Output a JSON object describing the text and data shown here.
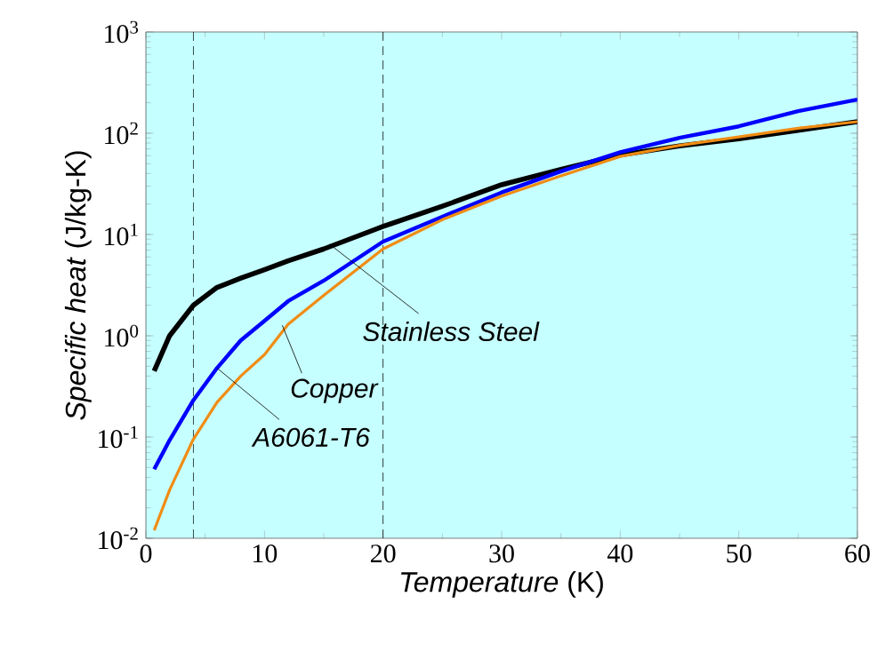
{
  "chart_data": {
    "type": "line",
    "xlabel": "*Temperature* (K)",
    "ylabel": "*Specific heat* (J/kg-K)",
    "log": "y",
    "xlim": [
      0,
      60
    ],
    "xticks": [
      0,
      10,
      20,
      30,
      40,
      50,
      60
    ],
    "ylim": [
      0.01,
      1000
    ],
    "yticks": [
      {
        "value": 0.01,
        "label": "10$^{-2}$"
      },
      {
        "value": 0.1,
        "label": "10$^{-1}$"
      },
      {
        "value": 1,
        "label": "10$^{0}$"
      },
      {
        "value": 10,
        "label": "10$^{1}$"
      },
      {
        "value": 100,
        "label": "10$^{2}$"
      },
      {
        "value": 1000,
        "label": "10$^{3}$"
      }
    ],
    "grid": false,
    "marker": "none",
    "line_style": "solid",
    "x": [
      0.7,
      2,
      4,
      6,
      8,
      10,
      12,
      15,
      20,
      25,
      30,
      35,
      40,
      45,
      50,
      55,
      60
    ],
    "series": [
      {
        "color": "#000000",
        "values": [
          0.45,
          1.0,
          2.0,
          3.0,
          3.7,
          4.5,
          5.5,
          7.2,
          12,
          19,
          31,
          44,
          61,
          75,
          88,
          107,
          130
        ]
      },
      {
        "color": "#0000ff",
        "values": [
          0.048,
          0.093,
          0.23,
          0.48,
          0.9,
          1.4,
          2.2,
          3.5,
          8.5,
          15,
          26,
          42,
          65,
          90,
          117,
          165,
          215
        ]
      },
      {
        "color": "#f08c14",
        "values": [
          0.012,
          0.03,
          0.095,
          0.22,
          0.4,
          0.65,
          1.3,
          2.5,
          7.2,
          14,
          24,
          38,
          59,
          76,
          92,
          112,
          130
        ]
      }
    ],
    "ref_lines": [
      {
        "axis": "x",
        "value": 4,
        "color": "#000000",
        "line_style": "dashed"
      },
      {
        "axis": "x",
        "value": 20,
        "color": "#000000",
        "line_style": "dashed"
      }
    ],
    "annotations": [
      {
        "text": "Stainless Steel",
        "x": 15.5,
        "y": 8
      },
      {
        "text": "Copper",
        "x": 11.5,
        "y": 1.27
      },
      {
        "text": "A6061-T6",
        "x": 6,
        "y": 0.48
      }
    ]
  }
}
